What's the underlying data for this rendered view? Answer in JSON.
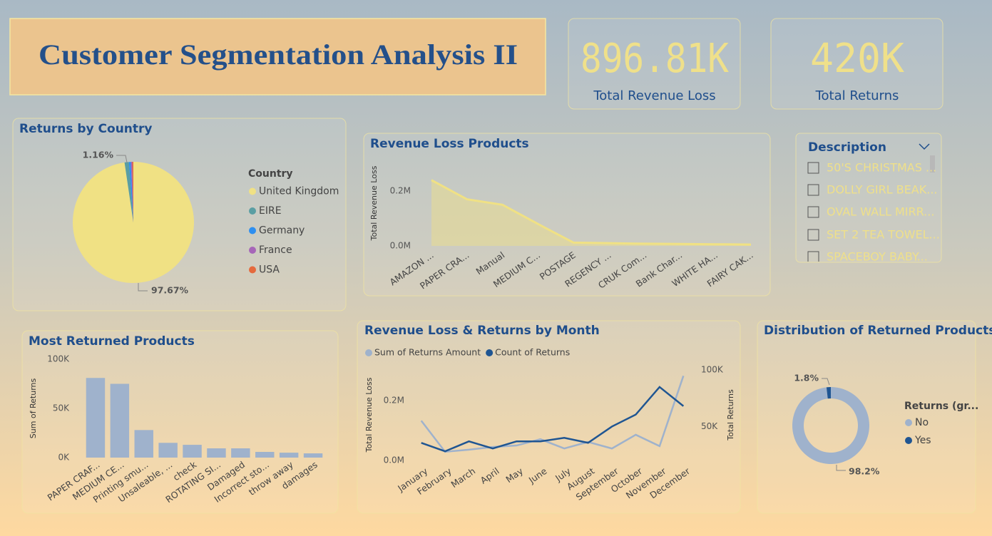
{
  "title": "Customer Segmentation Analysis II",
  "kpis": [
    {
      "value": "896.81K",
      "label": "Total Revenue Loss"
    },
    {
      "value": "420K",
      "label": "Total Returns"
    }
  ],
  "slicer": {
    "title": "Description",
    "items": [
      "50'S CHRISTMAS ...",
      "DOLLY GIRL BEAK...",
      "OVAL WALL MIRR...",
      "SET 2 TEA TOWEL...",
      "SPACEBOY BABY..."
    ]
  },
  "chart_data": [
    {
      "type": "pie",
      "title": "Returns by Country",
      "legend_title": "Country",
      "categories": [
        "United Kingdom",
        "EIRE",
        "Germany",
        "France",
        "USA"
      ],
      "values": [
        97.67,
        1.16,
        0.5,
        0.37,
        0.3
      ],
      "value_labels": [
        "97.67%",
        "1.16%",
        null,
        null,
        null
      ],
      "colors": [
        "#f0e184",
        "#5a9ea3",
        "#2e8ff0",
        "#a666b8",
        "#e56a3d"
      ]
    },
    {
      "type": "area",
      "title": "Revenue Loss Products",
      "ylabel": "Total Revenue Loss",
      "categories": [
        "AMAZON ...",
        "PAPER CRA...",
        "Manual",
        "MEDIUM C...",
        "POSTAGE",
        "REGENCY ...",
        "CRUK Com...",
        "Bank Char...",
        "WHITE HA...",
        "FAIRY CAK..."
      ],
      "values": [
        240000,
        170000,
        150000,
        80000,
        12000,
        10000,
        8000,
        7000,
        6000,
        5000
      ],
      "color": "#f0e184",
      "ylim": [
        0,
        260000
      ],
      "yticks": [
        {
          "value": 0,
          "label": "0.0M"
        },
        {
          "value": 200000,
          "label": "0.2M"
        }
      ]
    },
    {
      "type": "bar",
      "title": "Most Returned Products",
      "ylabel": "Sum of Returns",
      "categories": [
        "PAPER CRAF...",
        "MEDIUM CE...",
        "Printing smu...",
        "Unsaleable, ...",
        "check",
        "ROTATING SI...",
        "Damaged",
        "Incorrect sto...",
        "throw away",
        "damages"
      ],
      "values": [
        81000,
        75000,
        28000,
        15000,
        13000,
        9400,
        9400,
        5800,
        5000,
        4300
      ],
      "color": "#9fb2cc",
      "ylim": [
        0,
        100000
      ],
      "yticks": [
        {
          "value": 0,
          "label": "0K"
        },
        {
          "value": 50000,
          "label": "50K"
        },
        {
          "value": 100000,
          "label": "100K"
        }
      ]
    },
    {
      "type": "line",
      "title": "Revenue Loss & Returns by Month",
      "ylabel": "Total Revenue Loss",
      "y2label": "Total Returns",
      "categories": [
        "January",
        "February",
        "March",
        "April",
        "May",
        "June",
        "July",
        "August",
        "September",
        "October",
        "November",
        "December"
      ],
      "series": [
        {
          "name": "Sum of Returns Amount",
          "color": "#9fb2cc",
          "values": [
            133000,
            29000,
            36000,
            45000,
            50000,
            71000,
            40000,
            62000,
            40000,
            86000,
            48000,
            283000
          ]
        },
        {
          "name": "Count of Returns",
          "color": "#1f5592",
          "axis": "y2",
          "values": [
            35600,
            28100,
            36900,
            30600,
            36900,
            36900,
            40000,
            35600,
            50000,
            60600,
            85000,
            68100
          ]
        }
      ],
      "ylim": [
        0,
        310000
      ],
      "yticks": [
        {
          "value": 0,
          "label": "0.0M"
        },
        {
          "value": 200000,
          "label": "0.2M"
        }
      ],
      "y2lim": [
        20000,
        102000
      ],
      "y2ticks": [
        {
          "value": 50000,
          "label": "50K"
        },
        {
          "value": 100000,
          "label": "100K"
        }
      ]
    },
    {
      "type": "donut",
      "title": "Distribution of Returned Products",
      "legend_title": "Returns (gr...",
      "categories": [
        "No",
        "Yes"
      ],
      "values": [
        98.2,
        1.8
      ],
      "value_labels": [
        "98.2%",
        "1.8%"
      ],
      "colors": [
        "#9fb2cc",
        "#1f5592"
      ]
    }
  ]
}
